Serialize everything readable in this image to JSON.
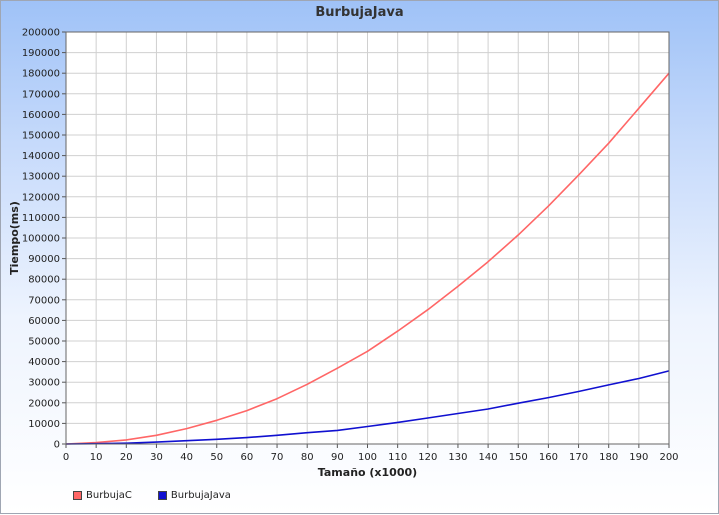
{
  "chart_data": {
    "type": "line",
    "title": "BurbujaJava",
    "xlabel": "Tamaño (x1000)",
    "ylabel": "Tiempo(ms)",
    "xlim": [
      0,
      200
    ],
    "ylim": [
      0,
      200000
    ],
    "x_ticks": [
      "0",
      "10",
      "20",
      "30",
      "40",
      "50",
      "60",
      "70",
      "80",
      "90",
      "100",
      "110",
      "120",
      "130",
      "140",
      "150",
      "160",
      "170",
      "180",
      "190",
      "200"
    ],
    "y_ticks": [
      "0",
      "10000",
      "20000",
      "30000",
      "40000",
      "50000",
      "60000",
      "70000",
      "80000",
      "90000",
      "100000",
      "110000",
      "120000",
      "130000",
      "140000",
      "150000",
      "160000",
      "170000",
      "180000",
      "190000",
      "200000"
    ],
    "grid": true,
    "legend_position": "bottom-left",
    "x": [
      0,
      10,
      20,
      30,
      40,
      50,
      60,
      70,
      80,
      90,
      100,
      110,
      120,
      130,
      140,
      150,
      160,
      170,
      180,
      190,
      200
    ],
    "series": [
      {
        "name": "BurbujaC",
        "color": "#ff6666",
        "values": [
          0,
          700,
          2000,
          4200,
          7500,
          11500,
          16200,
          22000,
          29000,
          36800,
          45000,
          54800,
          65200,
          76500,
          88500,
          101500,
          115500,
          130500,
          146000,
          163000,
          180000
        ]
      },
      {
        "name": "BurbujaJava",
        "color": "#1010d0",
        "values": [
          0,
          150,
          400,
          900,
          1600,
          2300,
          3100,
          4200,
          5500,
          6600,
          8500,
          10500,
          12600,
          14800,
          17000,
          19800,
          22500,
          25500,
          28700,
          31800,
          35500
        ]
      }
    ]
  }
}
